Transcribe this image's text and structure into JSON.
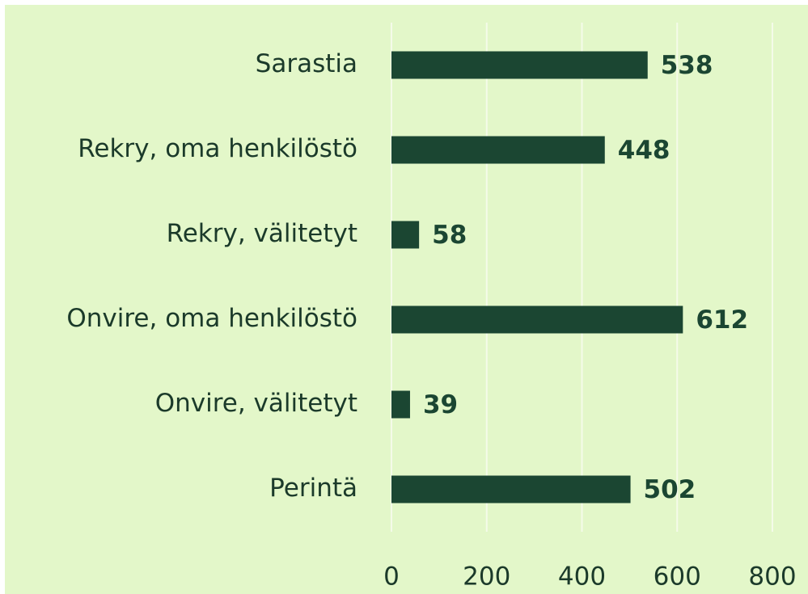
{
  "chart_data": {
    "type": "bar",
    "orientation": "horizontal",
    "categories": [
      "Sarastia",
      "Rekry, oma henkilöstö",
      "Rekry, välitetyt",
      "Onvire, oma henkilöstö",
      "Onvire, välitetyt",
      "Perintä"
    ],
    "values": [
      538,
      448,
      58,
      612,
      39,
      502
    ],
    "color": "#1b4632",
    "xlim": [
      0,
      800
    ],
    "xticks": [
      0,
      200,
      400,
      600,
      800
    ],
    "grid": true
  }
}
